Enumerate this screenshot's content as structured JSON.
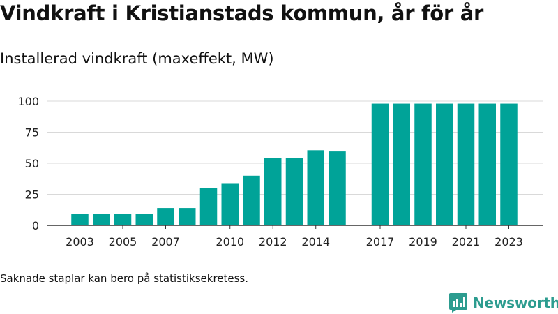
{
  "title": "Vindkraft i Kristianstads kommun, år för år",
  "subtitle": "Installerad vindkraft (maxeffekt, MW)",
  "note": "Saknade staplar kan bero på statistiksekretess.",
  "brand": {
    "name": "Newsworthy",
    "color": "#2c9c8f",
    "icon": "newsworthy-logo-icon"
  },
  "colors": {
    "bar": "#00a398",
    "grid": "#d9d9d9",
    "axis": "#333333"
  },
  "chart_data": {
    "type": "bar",
    "title": "Installerad vindkraft (maxeffekt, MW)",
    "xlabel": "",
    "ylabel": "",
    "ylim": [
      0,
      100
    ],
    "yticks": [
      0,
      25,
      50,
      75,
      100
    ],
    "grid": true,
    "xticks": [
      "2003",
      "2005",
      "2007",
      "2010",
      "2012",
      "2014",
      "2017",
      "2019",
      "2021",
      "2023"
    ],
    "categories": [
      "2003",
      "2004",
      "2005",
      "2006",
      "2007",
      "2008",
      "2009",
      "2010",
      "2011",
      "2012",
      "2013",
      "2014",
      "2015",
      "2016",
      "2017",
      "2018",
      "2019",
      "2020",
      "2021",
      "2022",
      "2023"
    ],
    "values": [
      9.5,
      9.5,
      9.5,
      9.5,
      14,
      14,
      30,
      34,
      40,
      54,
      54,
      60.5,
      59.5,
      null,
      98,
      98,
      98,
      98,
      98,
      98,
      98
    ]
  }
}
